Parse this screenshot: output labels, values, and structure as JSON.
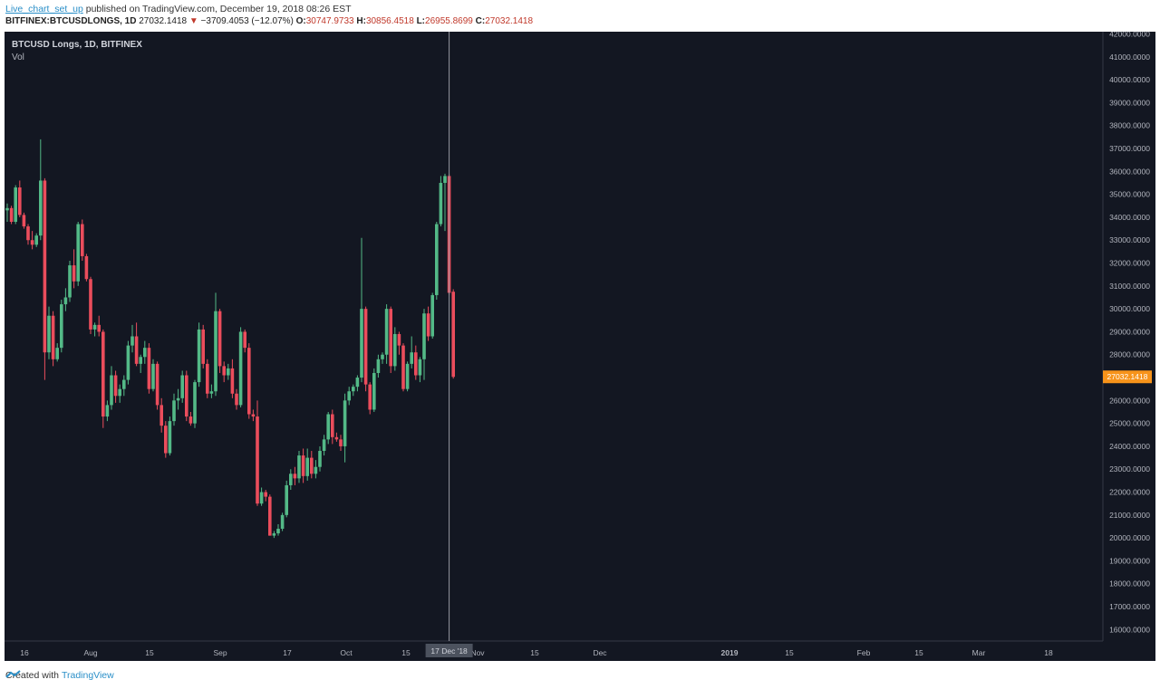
{
  "header": {
    "author": "Live_chart_set_up",
    "published_text": "published on TradingView.com, December 19, 2018 08:26 EST",
    "symbol": "BITFINEX:BTCUSDLONGS, 1D",
    "last": "27032.1418",
    "change": "−3709.4053 (−12.07%)",
    "o_label": "O:",
    "o_value": "30747.9733",
    "h_label": "H:",
    "h_value": "30856.4518",
    "l_label": "L:",
    "l_value": "26955.8699",
    "c_label": "C:",
    "c_value": "27032.1418"
  },
  "footer": {
    "created_with": "Created with",
    "brand": "TradingView"
  },
  "chart_data": {
    "type": "candlestick",
    "title": "BTCUSD Longs, 1D, BITFINEX",
    "subtitle": "Vol",
    "ylim": [
      15500,
      42100
    ],
    "y_ticks": [
      16000,
      17000,
      18000,
      19000,
      20000,
      21000,
      22000,
      23000,
      24000,
      25000,
      26000,
      27000,
      28000,
      29000,
      30000,
      31000,
      32000,
      33000,
      34000,
      35000,
      36000,
      37000,
      38000,
      39000,
      40000,
      41000,
      42000
    ],
    "y_tick_decimals": 4,
    "x_tick_labels": [
      "16",
      "Aug",
      "15",
      "Sep",
      "17",
      "Oct",
      "15",
      "Nov",
      "15",
      "Dec",
      "17 Dec '18",
      "2019",
      "15",
      "Feb",
      "15",
      "Mar",
      "18"
    ],
    "last_price_label": "27032.1418",
    "crosshair_label": "17 Dec '18",
    "colors": {
      "up": "#53b987",
      "down": "#eb4d5c",
      "background": "#131722",
      "axis_text": "#b2b5be",
      "price_tag": "#f7931a"
    },
    "candles": [
      [
        34300,
        34600,
        33800,
        34400
      ],
      [
        34400,
        34500,
        33700,
        33800
      ],
      [
        33800,
        35400,
        33700,
        35300
      ],
      [
        35300,
        35600,
        34000,
        34100
      ],
      [
        34100,
        34200,
        33500,
        33600
      ],
      [
        33600,
        33700,
        32800,
        33000
      ],
      [
        33000,
        33400,
        32600,
        32800
      ],
      [
        32800,
        33300,
        32700,
        33200
      ],
      [
        33200,
        37400,
        33000,
        35600
      ],
      [
        35600,
        35700,
        26900,
        28100
      ],
      [
        28100,
        30100,
        27800,
        29700
      ],
      [
        29700,
        29900,
        27500,
        27800
      ],
      [
        27800,
        28500,
        27700,
        28300
      ],
      [
        28300,
        30400,
        28100,
        30200
      ],
      [
        30200,
        30900,
        29900,
        30500
      ],
      [
        30500,
        32100,
        30300,
        31900
      ],
      [
        31900,
        32600,
        30900,
        31200
      ],
      [
        31200,
        33800,
        31000,
        33700
      ],
      [
        33700,
        33900,
        32100,
        32300
      ],
      [
        32300,
        32400,
        31200,
        31300
      ],
      [
        31300,
        31400,
        28900,
        29100
      ],
      [
        29100,
        29400,
        28800,
        29300
      ],
      [
        29300,
        29700,
        28800,
        29000
      ],
      [
        29000,
        29100,
        24800,
        25300
      ],
      [
        25300,
        26000,
        25100,
        25800
      ],
      [
        25800,
        27500,
        25600,
        27100
      ],
      [
        27100,
        27300,
        25900,
        26200
      ],
      [
        26200,
        26700,
        25900,
        26500
      ],
      [
        26500,
        27100,
        26200,
        26900
      ],
      [
        26900,
        28600,
        26700,
        28400
      ],
      [
        28400,
        29300,
        28100,
        28800
      ],
      [
        28800,
        29400,
        27500,
        27600
      ],
      [
        27600,
        28000,
        27200,
        27900
      ],
      [
        27900,
        28600,
        27600,
        28300
      ],
      [
        28300,
        28500,
        26300,
        26500
      ],
      [
        26500,
        27800,
        26400,
        27600
      ],
      [
        27600,
        27700,
        25600,
        25800
      ],
      [
        25800,
        26100,
        24600,
        24900
      ],
      [
        24900,
        25100,
        23500,
        23700
      ],
      [
        23700,
        25300,
        23600,
        25100
      ],
      [
        25100,
        26300,
        24900,
        26000
      ],
      [
        26000,
        26500,
        25600,
        26100
      ],
      [
        26100,
        27300,
        25900,
        27100
      ],
      [
        27100,
        27300,
        25100,
        25300
      ],
      [
        25300,
        25500,
        24900,
        25000
      ],
      [
        25000,
        26900,
        24800,
        26800
      ],
      [
        26800,
        29400,
        26600,
        29100
      ],
      [
        29100,
        29300,
        27400,
        27600
      ],
      [
        27600,
        27800,
        26100,
        26300
      ],
      [
        26300,
        26700,
        26100,
        26400
      ],
      [
        26400,
        30700,
        26200,
        29900
      ],
      [
        29900,
        30000,
        27200,
        27500
      ],
      [
        27500,
        27700,
        26800,
        27100
      ],
      [
        27100,
        27600,
        26900,
        27400
      ],
      [
        27400,
        27800,
        26100,
        26300
      ],
      [
        26300,
        26500,
        25600,
        25800
      ],
      [
        25800,
        29200,
        25700,
        29000
      ],
      [
        29000,
        29100,
        28100,
        28300
      ],
      [
        28300,
        28500,
        25200,
        25400
      ],
      [
        25400,
        25600,
        25100,
        25300
      ],
      [
        25300,
        26000,
        21400,
        21500
      ],
      [
        21500,
        22200,
        21400,
        22000
      ],
      [
        22000,
        22100,
        21600,
        21800
      ],
      [
        21800,
        21900,
        20100,
        20100
      ],
      [
        20100,
        20300,
        20000,
        20200
      ],
      [
        20200,
        20600,
        20100,
        20400
      ],
      [
        20400,
        21100,
        20300,
        21000
      ],
      [
        21000,
        22500,
        20900,
        22300
      ],
      [
        22300,
        23000,
        22100,
        22800
      ],
      [
        22800,
        23100,
        22300,
        22600
      ],
      [
        22600,
        23800,
        22400,
        23600
      ],
      [
        23600,
        23900,
        22400,
        22700
      ],
      [
        22700,
        23900,
        22500,
        23500
      ],
      [
        23500,
        23800,
        22600,
        22800
      ],
      [
        22800,
        23400,
        22600,
        23100
      ],
      [
        23100,
        24000,
        22900,
        23800
      ],
      [
        23800,
        24500,
        23600,
        24300
      ],
      [
        24300,
        25500,
        24100,
        25400
      ],
      [
        25400,
        25600,
        24100,
        24400
      ],
      [
        24400,
        24600,
        24200,
        24300
      ],
      [
        24300,
        24500,
        23800,
        24000
      ],
      [
        24000,
        26300,
        23300,
        26000
      ],
      [
        26000,
        26600,
        25800,
        26400
      ],
      [
        26400,
        26700,
        26200,
        26600
      ],
      [
        26600,
        27100,
        26400,
        27000
      ],
      [
        27000,
        33100,
        26800,
        30000
      ],
      [
        30000,
        30100,
        26400,
        26700
      ],
      [
        26700,
        26800,
        25400,
        25600
      ],
      [
        25600,
        27400,
        25500,
        27200
      ],
      [
        27200,
        28000,
        27000,
        27800
      ],
      [
        27800,
        28100,
        27600,
        28000
      ],
      [
        28000,
        30200,
        27600,
        30000
      ],
      [
        30000,
        30100,
        27200,
        27500
      ],
      [
        27500,
        29200,
        27300,
        28900
      ],
      [
        28900,
        29000,
        28000,
        28400
      ],
      [
        28400,
        28500,
        26400,
        26500
      ],
      [
        26500,
        27700,
        26400,
        27600
      ],
      [
        27600,
        28800,
        27400,
        28100
      ],
      [
        28100,
        28400,
        26900,
        27100
      ],
      [
        27100,
        27900,
        26800,
        27800
      ],
      [
        27800,
        30000,
        26900,
        29800
      ],
      [
        29800,
        30100,
        28600,
        28800
      ],
      [
        28800,
        30700,
        28700,
        30600
      ],
      [
        30600,
        33800,
        30400,
        33700
      ],
      [
        33700,
        35800,
        33600,
        35500
      ],
      [
        35500,
        35900,
        33400,
        35800
      ],
      [
        35800,
        35900,
        30600,
        30700
      ],
      [
        30748,
        30856,
        26956,
        27032
      ]
    ]
  }
}
